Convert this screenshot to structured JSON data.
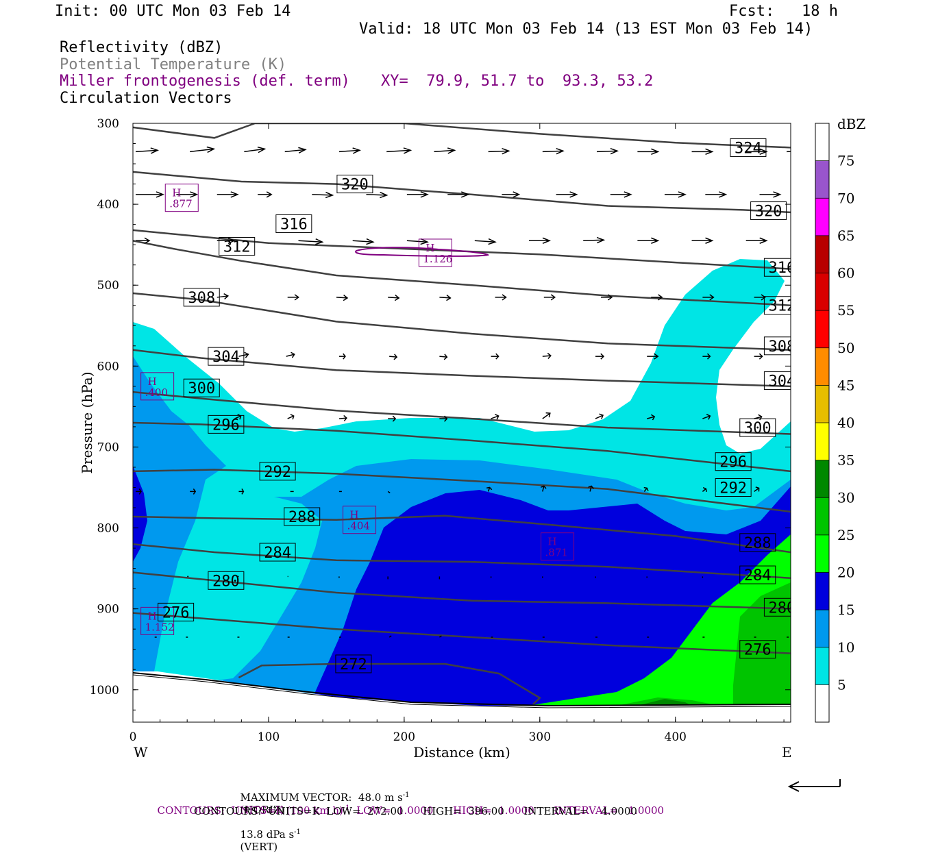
{
  "header": {
    "init": "Init: 00 UTC Mon 03 Feb 14",
    "fcst": "Fcst:   18 h",
    "valid": "Valid: 18 UTC Mon 03 Feb 14 (13 EST Mon 03 Feb 14)",
    "line1": "Reflectivity (dBZ)",
    "line2": "Potential Temperature (K)",
    "line3": "Miller frontogenesis (def. term)",
    "xy": "XY=  79.9, 51.7 to  93.3, 53.2",
    "line4": "Circulation Vectors"
  },
  "colors": {
    "potential_temperature": "#808080",
    "frontogenesis": "#800080",
    "theta_contour": "#404040"
  },
  "chart_data": {
    "type": "cross-section",
    "xlabel": "Distance (km)",
    "ylabel": "Pressure (hPa)",
    "x_ticks": [
      0,
      100,
      200,
      300,
      400
    ],
    "y_ticks": [
      300,
      400,
      500,
      600,
      700,
      800,
      900,
      1000
    ],
    "xlim": [
      0,
      485
    ],
    "ylim": [
      300,
      1040
    ],
    "west_label": "W",
    "east_label": "E",
    "colorbar": {
      "title": "dBZ",
      "levels": [
        5,
        10,
        15,
        20,
        25,
        30,
        35,
        40,
        45,
        50,
        55,
        60,
        65,
        70,
        75
      ],
      "colors": [
        "#ffffff",
        "#00e5e5",
        "#0099ee",
        "#0000dd",
        "#00ff00",
        "#00c400",
        "#008800",
        "#ffff00",
        "#e6be00",
        "#ff8c00",
        "#ff0000",
        "#d90000",
        "#b80000",
        "#ff00ff",
        "#9955cc",
        "#ffffff"
      ]
    },
    "theta_contours": [
      {
        "label": "324",
        "points": [
          [
            0,
            305
          ],
          [
            60,
            318
          ],
          [
            90,
            300
          ],
          [
            200,
            300
          ],
          [
            300,
            313
          ],
          [
            400,
            324
          ],
          [
            485,
            330
          ]
        ],
        "labels_at": [
          [
            440,
            330
          ]
        ]
      },
      {
        "label": "320",
        "points": [
          [
            0,
            360
          ],
          [
            80,
            372
          ],
          [
            150,
            375
          ],
          [
            250,
            388
          ],
          [
            350,
            402
          ],
          [
            450,
            407
          ],
          [
            485,
            410
          ]
        ],
        "labels_at": [
          [
            150,
            375
          ],
          [
            455,
            408
          ]
        ]
      },
      {
        "label": "316",
        "points": [
          [
            0,
            432
          ],
          [
            50,
            440
          ],
          [
            100,
            448
          ],
          [
            200,
            455
          ],
          [
            300,
            462
          ],
          [
            400,
            472
          ],
          [
            485,
            480
          ]
        ],
        "labels_at": [
          [
            105,
            424
          ],
          [
            465,
            478
          ]
        ]
      },
      {
        "label": "312",
        "points": [
          [
            0,
            445
          ],
          [
            30,
            455
          ],
          [
            80,
            470
          ],
          [
            150,
            488
          ],
          [
            250,
            500
          ],
          [
            350,
            513
          ],
          [
            485,
            525
          ]
        ],
        "labels_at": [
          [
            63,
            452
          ],
          [
            465,
            525
          ]
        ]
      },
      {
        "label": "308",
        "points": [
          [
            0,
            510
          ],
          [
            50,
            518
          ],
          [
            150,
            545
          ],
          [
            250,
            560
          ],
          [
            350,
            572
          ],
          [
            485,
            580
          ]
        ],
        "labels_at": [
          [
            37,
            515
          ],
          [
            465,
            575
          ]
        ]
      },
      {
        "label": "304",
        "points": [
          [
            0,
            580
          ],
          [
            50,
            590
          ],
          [
            150,
            605
          ],
          [
            250,
            612
          ],
          [
            350,
            618
          ],
          [
            485,
            625
          ]
        ],
        "labels_at": [
          [
            55,
            588
          ],
          [
            465,
            618
          ]
        ]
      },
      {
        "label": "300",
        "points": [
          [
            0,
            632
          ],
          [
            50,
            640
          ],
          [
            150,
            655
          ],
          [
            250,
            665
          ],
          [
            350,
            676
          ],
          [
            485,
            684
          ]
        ],
        "labels_at": [
          [
            37,
            627
          ],
          [
            447,
            676
          ]
        ]
      },
      {
        "label": "296",
        "points": [
          [
            0,
            670
          ],
          [
            50,
            672
          ],
          [
            150,
            680
          ],
          [
            250,
            692
          ],
          [
            350,
            705
          ],
          [
            485,
            730
          ]
        ],
        "labels_at": [
          [
            55,
            672
          ],
          [
            429,
            718
          ]
        ]
      },
      {
        "label": "292",
        "points": [
          [
            0,
            730
          ],
          [
            60,
            728
          ],
          [
            150,
            733
          ],
          [
            250,
            742
          ],
          [
            350,
            752
          ],
          [
            485,
            780
          ]
        ],
        "labels_at": [
          [
            93,
            730
          ],
          [
            429,
            750
          ]
        ]
      },
      {
        "label": "288",
        "points": [
          [
            0,
            786
          ],
          [
            60,
            788
          ],
          [
            150,
            790
          ],
          [
            230,
            785
          ],
          [
            300,
            795
          ],
          [
            400,
            810
          ],
          [
            485,
            830
          ]
        ],
        "labels_at": [
          [
            111,
            786
          ],
          [
            447,
            818
          ]
        ]
      },
      {
        "label": "284",
        "points": [
          [
            0,
            820
          ],
          [
            60,
            830
          ],
          [
            150,
            840
          ],
          [
            250,
            842
          ],
          [
            350,
            848
          ],
          [
            485,
            862
          ]
        ],
        "labels_at": [
          [
            93,
            830
          ],
          [
            447,
            858
          ]
        ]
      },
      {
        "label": "280",
        "points": [
          [
            0,
            855
          ],
          [
            60,
            865
          ],
          [
            150,
            880
          ],
          [
            250,
            890
          ],
          [
            350,
            893
          ],
          [
            485,
            900
          ]
        ],
        "labels_at": [
          [
            55,
            865
          ],
          [
            465,
            898
          ]
        ]
      },
      {
        "label": "276",
        "points": [
          [
            0,
            905
          ],
          [
            60,
            913
          ],
          [
            150,
            925
          ],
          [
            250,
            935
          ],
          [
            350,
            945
          ],
          [
            485,
            955
          ]
        ],
        "labels_at": [
          [
            18,
            904
          ],
          [
            447,
            950
          ]
        ]
      },
      {
        "label": "272",
        "points": [
          [
            78,
            985
          ],
          [
            95,
            970
          ],
          [
            150,
            968
          ],
          [
            230,
            968
          ],
          [
            270,
            980
          ],
          [
            300,
            1010
          ],
          [
            295,
            1018
          ]
        ],
        "labels_at": [
          [
            149,
            968
          ]
        ]
      }
    ],
    "frontogenesis_maxima": [
      {
        "label": "H",
        "value": ".877",
        "x": 36,
        "p": 392
      },
      {
        "label": "H",
        "value": "1.126",
        "x": 223,
        "p": 460
      },
      {
        "label": "H",
        "value": ".400",
        "x": 18,
        "p": 625
      },
      {
        "label": "H",
        "value": ".404",
        "x": 167,
        "p": 790
      },
      {
        "label": "H",
        "value": ".871",
        "x": 313,
        "p": 823
      },
      {
        "label": "H",
        "value": "1.152",
        "x": 18,
        "p": 915
      }
    ],
    "vector_rows": [
      {
        "p": 335,
        "x": [
          0,
          40,
          80,
          110,
          150,
          185,
          220,
          260,
          300,
          340,
          370,
          410,
          450,
          480
        ],
        "dx": [
          32,
          35,
          30,
          30,
          30,
          35,
          30,
          30,
          30,
          30,
          30,
          30,
          30,
          30
        ],
        "dy": [
          -2,
          -4,
          -4,
          -3,
          -2,
          -2,
          -2,
          -1,
          -1,
          -1,
          0,
          0,
          0,
          -1
        ]
      },
      {
        "p": 388,
        "x": [
          0,
          30,
          60,
          90,
          130,
          170,
          200,
          230,
          270,
          310,
          350,
          390,
          420,
          460
        ],
        "dx": [
          40,
          30,
          30,
          20,
          30,
          30,
          30,
          30,
          25,
          30,
          30,
          30,
          30,
          30
        ],
        "dy": [
          0,
          0,
          0,
          0,
          1,
          1,
          0,
          0,
          0,
          0,
          0,
          0,
          0,
          0
        ]
      },
      {
        "p": 445,
        "x": [
          0,
          60,
          120,
          160,
          200,
          250,
          290,
          330,
          370,
          410,
          450
        ],
        "dx": [
          20,
          25,
          35,
          30,
          30,
          30,
          30,
          30,
          30,
          30,
          30
        ],
        "dy": [
          0,
          0,
          2,
          2,
          2,
          2,
          0,
          -1,
          0,
          0,
          0
        ]
      },
      {
        "p": 515,
        "x": [
          60,
          112,
          148,
          186,
          224,
          265,
          301,
          343,
          380,
          418,
          456
        ],
        "dx": [
          16,
          16,
          16,
          16,
          16,
          16,
          16,
          16,
          16,
          16,
          16
        ],
        "dy": [
          -2,
          0,
          1,
          1,
          1,
          0,
          0,
          0,
          0,
          0,
          0
        ]
      },
      {
        "p": 588,
        "x": [
          76,
          111,
          150,
          187,
          224,
          262,
          300,
          339,
          377,
          418,
          456
        ],
        "dx": [
          14,
          12,
          9,
          11,
          11,
          11,
          12,
          12,
          16,
          11,
          12
        ],
        "dy": [
          -3,
          -3,
          0,
          1,
          1,
          0,
          -1,
          0,
          0,
          0,
          0
        ]
      },
      {
        "p": 665,
        "x": [
          73,
          112,
          150,
          186,
          224,
          262,
          300,
          339,
          377,
          418,
          456
        ],
        "dx": [
          9,
          9,
          11,
          11,
          11,
          11,
          11,
          11,
          11,
          11,
          11
        ],
        "dy": [
          -4,
          -4,
          -1,
          0,
          0,
          -4,
          -8,
          -5,
          -3,
          -4,
          -3
        ]
      },
      {
        "p": 755,
        "x": [
          0,
          40,
          76,
          114,
          150,
          186,
          260,
          300,
          335,
          375,
          418,
          456
        ],
        "dx": [
          8,
          8,
          7,
          5,
          4,
          3,
          2,
          2,
          2,
          4,
          5,
          7
        ],
        "dy": [
          0,
          0,
          0,
          0,
          0,
          2,
          -6,
          -8,
          -8,
          -5,
          -4,
          -5
        ]
      },
      {
        "p": 860,
        "x": [
          38,
          75,
          112,
          150,
          186,
          224,
          262,
          300,
          339,
          377,
          418,
          456
        ],
        "dx": [
          2,
          2,
          1,
          0,
          0,
          0,
          0,
          0,
          0,
          0,
          0,
          0
        ],
        "dy": [
          0,
          0,
          0,
          2,
          4,
          4,
          2,
          2,
          2,
          2,
          2,
          2
        ]
      },
      {
        "p": 935,
        "x": [
          14,
          37,
          75,
          112,
          150,
          187,
          224,
          262,
          300,
          339,
          377,
          418,
          456,
          480
        ],
        "dx": [
          3,
          3,
          3,
          3,
          3,
          3,
          3,
          3,
          3,
          3,
          3,
          3,
          3,
          3
        ],
        "dy": [
          0,
          0,
          0,
          0,
          0,
          -2,
          -2,
          0,
          0,
          0,
          0,
          0,
          0,
          0
        ]
      }
    ],
    "max_vector_label": "MAXIMUM VECTOR:  48.0 m s",
    "max_vector_horiz": "(HORIZ)",
    "max_vector_vert_value": "13.8 dPa s",
    "max_vector_vert": "(VERT)",
    "sup_neg1": "-1"
  },
  "footer": {
    "fg_contours_a": "CONTOURS:  UNITS=K (100 km h)",
    "fg_contours_b": "  LOW=  1.0000      HIGH=  1.0000      INTERVAL=   1.0000",
    "theta_contours": "CONTOURS:  UNITS=K  LOW=  272.00      HIGH=  396.00      INTERVAL=    4.0000"
  }
}
